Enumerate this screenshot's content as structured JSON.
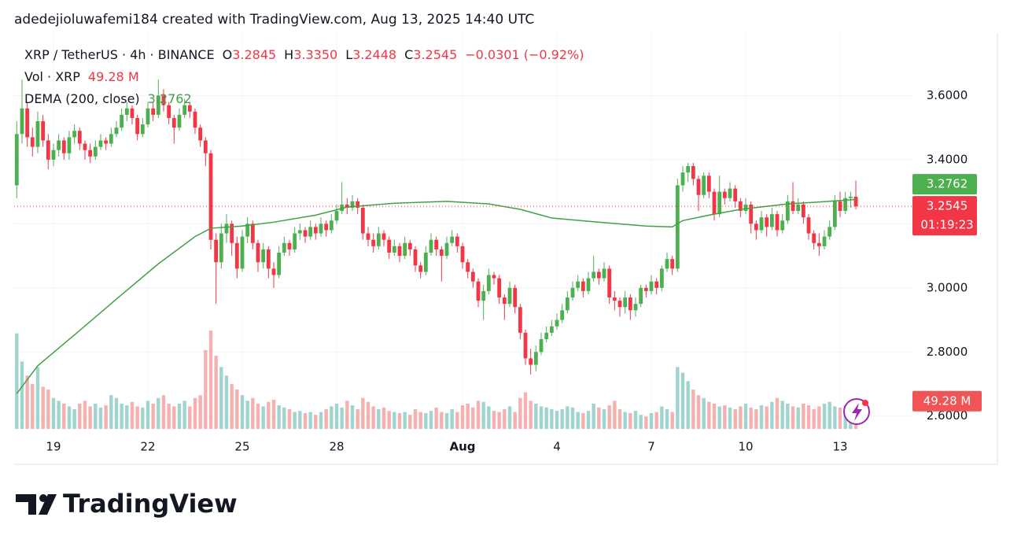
{
  "header": {
    "attribution": "adedejioluwafemi184 created with TradingView.com, Aug 13, 2025 14:40 UTC"
  },
  "chart_data": {
    "type": "candlestick",
    "symbol": "XRP / TetherUS · 4h · BINANCE",
    "ohlc_names": [
      "O",
      "H",
      "L",
      "C"
    ],
    "ohlc_labels": [
      "3.2845",
      "3.3350",
      "3.2448",
      "3.2545"
    ],
    "change": "−0.0301 (−0.92%)",
    "countdown": "01:19:23",
    "colors": {
      "up": "#4caf50",
      "down": "#f23645",
      "vol_up": "#9fd4cf",
      "vol_down": "#f6b0b0"
    },
    "grid": true,
    "ylim": [
      2.56,
      3.8
    ],
    "yticks": [
      {
        "value": 3.6,
        "label": "3.6000"
      },
      {
        "value": 3.4,
        "label": "3.4000"
      },
      {
        "value": 3.2,
        "label": "3.2000"
      },
      {
        "value": 3.0,
        "label": "3.0000"
      },
      {
        "value": 2.8,
        "label": "2.8000"
      },
      {
        "value": 2.6,
        "label": "2.6000"
      }
    ],
    "categories": [
      null,
      null,
      null,
      null,
      null,
      null,
      null,
      "19",
      null,
      null,
      null,
      null,
      null,
      null,
      null,
      null,
      null,
      null,
      null,
      null,
      null,
      null,
      null,
      null,
      null,
      "22",
      null,
      null,
      null,
      null,
      null,
      null,
      null,
      null,
      null,
      null,
      null,
      null,
      null,
      null,
      null,
      null,
      null,
      "25",
      null,
      null,
      null,
      null,
      null,
      null,
      null,
      null,
      null,
      null,
      null,
      null,
      null,
      null,
      null,
      null,
      null,
      "28",
      null,
      null,
      null,
      null,
      null,
      null,
      null,
      null,
      null,
      null,
      null,
      null,
      null,
      null,
      null,
      null,
      null,
      null,
      null,
      null,
      null,
      null,
      null,
      "Aug",
      null,
      null,
      null,
      null,
      null,
      null,
      null,
      null,
      null,
      null,
      null,
      null,
      null,
      null,
      null,
      null,
      null,
      "4",
      null,
      null,
      null,
      null,
      null,
      null,
      null,
      null,
      null,
      null,
      null,
      null,
      null,
      null,
      null,
      null,
      null,
      "7",
      null,
      null,
      null,
      null,
      null,
      null,
      null,
      null,
      null,
      null,
      null,
      null,
      null,
      null,
      null,
      null,
      null,
      "10",
      null,
      null,
      null,
      null,
      null,
      null,
      null,
      null,
      null,
      null,
      null,
      null,
      null,
      null,
      null,
      null,
      null,
      "13",
      null,
      null,
      null
    ],
    "candles": [
      [
        3.32,
        3.52,
        3.28,
        3.48
      ],
      [
        3.48,
        3.65,
        3.45,
        3.56
      ],
      [
        3.56,
        3.58,
        3.44,
        3.47
      ],
      [
        3.47,
        3.5,
        3.41,
        3.44
      ],
      [
        3.44,
        3.55,
        3.42,
        3.52
      ],
      [
        3.52,
        3.54,
        3.44,
        3.46
      ],
      [
        3.46,
        3.48,
        3.37,
        3.4
      ],
      [
        3.4,
        3.45,
        3.38,
        3.43
      ],
      [
        3.43,
        3.48,
        3.41,
        3.46
      ],
      [
        3.46,
        3.47,
        3.4,
        3.42
      ],
      [
        3.42,
        3.49,
        3.4,
        3.47
      ],
      [
        3.47,
        3.51,
        3.45,
        3.49
      ],
      [
        3.49,
        3.5,
        3.43,
        3.45
      ],
      [
        3.45,
        3.46,
        3.4,
        3.43
      ],
      [
        3.43,
        3.45,
        3.39,
        3.41
      ],
      [
        3.41,
        3.46,
        3.4,
        3.44
      ],
      [
        3.44,
        3.48,
        3.43,
        3.46
      ],
      [
        3.46,
        3.47,
        3.43,
        3.45
      ],
      [
        3.45,
        3.5,
        3.44,
        3.48
      ],
      [
        3.48,
        3.52,
        3.47,
        3.5
      ],
      [
        3.5,
        3.56,
        3.49,
        3.54
      ],
      [
        3.54,
        3.58,
        3.52,
        3.56
      ],
      [
        3.56,
        3.57,
        3.51,
        3.53
      ],
      [
        3.53,
        3.54,
        3.46,
        3.48
      ],
      [
        3.48,
        3.53,
        3.47,
        3.51
      ],
      [
        3.51,
        3.58,
        3.5,
        3.56
      ],
      [
        3.56,
        3.58,
        3.52,
        3.54
      ],
      [
        3.54,
        3.65,
        3.53,
        3.6
      ],
      [
        3.6,
        3.62,
        3.55,
        3.57
      ],
      [
        3.57,
        3.58,
        3.51,
        3.53
      ],
      [
        3.53,
        3.54,
        3.45,
        3.5
      ],
      [
        3.5,
        3.56,
        3.49,
        3.54
      ],
      [
        3.54,
        3.59,
        3.53,
        3.57
      ],
      [
        3.57,
        3.58,
        3.53,
        3.55
      ],
      [
        3.55,
        3.56,
        3.48,
        3.5
      ],
      [
        3.5,
        3.51,
        3.44,
        3.46
      ],
      [
        3.46,
        3.47,
        3.38,
        3.42
      ],
      [
        3.42,
        3.43,
        3.12,
        3.15
      ],
      [
        3.15,
        3.17,
        2.95,
        3.08
      ],
      [
        3.08,
        3.2,
        3.06,
        3.17
      ],
      [
        3.17,
        3.23,
        3.14,
        3.2
      ],
      [
        3.2,
        3.21,
        3.1,
        3.14
      ],
      [
        3.14,
        3.16,
        3.03,
        3.06
      ],
      [
        3.06,
        3.18,
        3.05,
        3.16
      ],
      [
        3.16,
        3.22,
        3.14,
        3.2
      ],
      [
        3.2,
        3.21,
        3.12,
        3.14
      ],
      [
        3.14,
        3.15,
        3.05,
        3.08
      ],
      [
        3.08,
        3.14,
        3.06,
        3.12
      ],
      [
        3.12,
        3.13,
        3.03,
        3.06
      ],
      [
        3.06,
        3.08,
        3.0,
        3.04
      ],
      [
        3.04,
        3.13,
        3.03,
        3.11
      ],
      [
        3.11,
        3.16,
        3.1,
        3.14
      ],
      [
        3.14,
        3.15,
        3.1,
        3.12
      ],
      [
        3.12,
        3.19,
        3.11,
        3.17
      ],
      [
        3.17,
        3.2,
        3.15,
        3.18
      ],
      [
        3.18,
        3.19,
        3.14,
        3.16
      ],
      [
        3.16,
        3.21,
        3.15,
        3.19
      ],
      [
        3.19,
        3.2,
        3.15,
        3.17
      ],
      [
        3.17,
        3.22,
        3.16,
        3.2
      ],
      [
        3.2,
        3.21,
        3.16,
        3.18
      ],
      [
        3.18,
        3.23,
        3.17,
        3.21
      ],
      [
        3.21,
        3.26,
        3.2,
        3.24
      ],
      [
        3.24,
        3.33,
        3.23,
        3.26
      ],
      [
        3.26,
        3.28,
        3.23,
        3.25
      ],
      [
        3.25,
        3.29,
        3.24,
        3.27
      ],
      [
        3.27,
        3.28,
        3.23,
        3.25
      ],
      [
        3.25,
        3.26,
        3.15,
        3.17
      ],
      [
        3.17,
        3.19,
        3.13,
        3.15
      ],
      [
        3.15,
        3.17,
        3.11,
        3.13
      ],
      [
        3.13,
        3.19,
        3.12,
        3.17
      ],
      [
        3.17,
        3.18,
        3.13,
        3.15
      ],
      [
        3.15,
        3.16,
        3.09,
        3.11
      ],
      [
        3.11,
        3.15,
        3.1,
        3.13
      ],
      [
        3.13,
        3.14,
        3.08,
        3.1
      ],
      [
        3.1,
        3.16,
        3.09,
        3.14
      ],
      [
        3.14,
        3.15,
        3.1,
        3.12
      ],
      [
        3.12,
        3.13,
        3.05,
        3.07
      ],
      [
        3.07,
        3.08,
        3.03,
        3.05
      ],
      [
        3.05,
        3.13,
        3.04,
        3.11
      ],
      [
        3.11,
        3.17,
        3.1,
        3.15
      ],
      [
        3.15,
        3.16,
        3.1,
        3.12
      ],
      [
        3.12,
        3.13,
        3.02,
        3.1
      ],
      [
        3.1,
        3.16,
        3.09,
        3.14
      ],
      [
        3.14,
        3.18,
        3.13,
        3.16
      ],
      [
        3.16,
        3.17,
        3.11,
        3.13
      ],
      [
        3.13,
        3.14,
        3.06,
        3.08
      ],
      [
        3.08,
        3.09,
        3.03,
        3.05
      ],
      [
        3.05,
        3.06,
        3.0,
        3.02
      ],
      [
        3.02,
        3.03,
        2.94,
        2.96
      ],
      [
        2.96,
        3.01,
        2.9,
        2.99
      ],
      [
        2.99,
        3.06,
        2.98,
        3.04
      ],
      [
        3.04,
        3.05,
        3.01,
        3.03
      ],
      [
        3.03,
        3.04,
        2.95,
        2.97
      ],
      [
        2.97,
        2.98,
        2.9,
        2.95
      ],
      [
        2.95,
        3.02,
        2.94,
        3.0
      ],
      [
        3.0,
        3.01,
        2.92,
        2.94
      ],
      [
        2.94,
        2.95,
        2.84,
        2.86
      ],
      [
        2.86,
        2.87,
        2.76,
        2.78
      ],
      [
        2.78,
        2.81,
        2.73,
        2.76
      ],
      [
        2.76,
        2.82,
        2.74,
        2.8
      ],
      [
        2.8,
        2.86,
        2.79,
        2.84
      ],
      [
        2.84,
        2.88,
        2.83,
        2.86
      ],
      [
        2.86,
        2.9,
        2.85,
        2.88
      ],
      [
        2.88,
        2.92,
        2.87,
        2.9
      ],
      [
        2.9,
        2.95,
        2.89,
        2.93
      ],
      [
        2.93,
        2.99,
        2.92,
        2.97
      ],
      [
        2.97,
        3.02,
        2.96,
        3.0
      ],
      [
        3.0,
        3.04,
        2.99,
        3.02
      ],
      [
        3.02,
        3.03,
        2.97,
        2.99
      ],
      [
        2.99,
        3.05,
        2.98,
        3.03
      ],
      [
        3.03,
        3.1,
        3.02,
        3.05
      ],
      [
        3.05,
        3.06,
        3.01,
        3.03
      ],
      [
        3.03,
        3.08,
        3.02,
        3.06
      ],
      [
        3.06,
        3.07,
        2.95,
        2.97
      ],
      [
        2.97,
        2.99,
        2.93,
        2.96
      ],
      [
        2.96,
        2.97,
        2.91,
        2.94
      ],
      [
        2.94,
        2.99,
        2.92,
        2.97
      ],
      [
        2.97,
        2.98,
        2.9,
        2.93
      ],
      [
        2.93,
        2.97,
        2.91,
        2.95
      ],
      [
        2.95,
        3.01,
        2.94,
        3.0
      ],
      [
        3.0,
        3.01,
        2.97,
        2.99
      ],
      [
        2.99,
        3.04,
        2.98,
        3.02
      ],
      [
        3.02,
        3.03,
        2.98,
        3.0
      ],
      [
        3.0,
        3.07,
        2.99,
        3.06
      ],
      [
        3.06,
        3.11,
        3.05,
        3.09
      ],
      [
        3.09,
        3.1,
        3.04,
        3.06
      ],
      [
        3.06,
        3.34,
        3.05,
        3.32
      ],
      [
        3.32,
        3.38,
        3.3,
        3.36
      ],
      [
        3.36,
        3.39,
        3.33,
        3.38
      ],
      [
        3.38,
        3.39,
        3.32,
        3.34
      ],
      [
        3.34,
        3.35,
        3.24,
        3.29
      ],
      [
        3.29,
        3.36,
        3.28,
        3.35
      ],
      [
        3.35,
        3.36,
        3.28,
        3.3
      ],
      [
        3.3,
        3.31,
        3.21,
        3.23
      ],
      [
        3.23,
        3.35,
        3.22,
        3.3
      ],
      [
        3.3,
        3.31,
        3.26,
        3.28
      ],
      [
        3.28,
        3.33,
        3.27,
        3.31
      ],
      [
        3.31,
        3.32,
        3.25,
        3.27
      ],
      [
        3.27,
        3.28,
        3.22,
        3.24
      ],
      [
        3.24,
        3.28,
        3.23,
        3.26
      ],
      [
        3.26,
        3.27,
        3.17,
        3.2
      ],
      [
        3.2,
        3.21,
        3.15,
        3.18
      ],
      [
        3.18,
        3.24,
        3.17,
        3.22
      ],
      [
        3.22,
        3.23,
        3.16,
        3.19
      ],
      [
        3.19,
        3.25,
        3.18,
        3.23
      ],
      [
        3.23,
        3.24,
        3.16,
        3.18
      ],
      [
        3.18,
        3.23,
        3.17,
        3.21
      ],
      [
        3.21,
        3.29,
        3.2,
        3.27
      ],
      [
        3.27,
        3.33,
        3.23,
        3.24
      ],
      [
        3.24,
        3.28,
        3.23,
        3.26
      ],
      [
        3.26,
        3.27,
        3.2,
        3.22
      ],
      [
        3.22,
        3.23,
        3.15,
        3.17
      ],
      [
        3.17,
        3.18,
        3.12,
        3.14
      ],
      [
        3.14,
        3.17,
        3.1,
        3.13
      ],
      [
        3.13,
        3.18,
        3.12,
        3.16
      ],
      [
        3.16,
        3.21,
        3.15,
        3.19
      ],
      [
        3.19,
        3.29,
        3.18,
        3.27
      ],
      [
        3.27,
        3.3,
        3.22,
        3.24
      ],
      [
        3.24,
        3.3,
        3.23,
        3.28
      ],
      [
        3.28,
        3.3,
        3.25,
        3.2845
      ],
      [
        3.2845,
        3.335,
        3.2448,
        3.2545
      ]
    ],
    "volume": {
      "name": "Vol · XRP",
      "value_label": "49.28 M",
      "values": [
        170,
        120,
        95,
        80,
        110,
        75,
        70,
        55,
        50,
        45,
        40,
        35,
        45,
        50,
        40,
        45,
        38,
        42,
        60,
        55,
        45,
        42,
        48,
        40,
        38,
        50,
        45,
        55,
        60,
        45,
        40,
        45,
        50,
        40,
        55,
        60,
        140,
        175,
        130,
        110,
        95,
        80,
        70,
        60,
        50,
        55,
        45,
        40,
        48,
        52,
        42,
        38,
        35,
        30,
        32,
        28,
        30,
        25,
        30,
        35,
        40,
        45,
        38,
        50,
        42,
        35,
        55,
        48,
        40,
        35,
        38,
        32,
        30,
        28,
        30,
        25,
        35,
        30,
        28,
        32,
        38,
        30,
        28,
        35,
        30,
        42,
        45,
        38,
        50,
        48,
        40,
        32,
        30,
        35,
        40,
        30,
        55,
        65,
        50,
        45,
        40,
        38,
        35,
        32,
        35,
        40,
        38,
        30,
        28,
        32,
        45,
        38,
        35,
        42,
        50,
        35,
        30,
        28,
        32,
        25,
        22,
        28,
        30,
        40,
        35,
        30,
        110,
        100,
        85,
        70,
        60,
        55,
        48,
        45,
        40,
        42,
        38,
        35,
        40,
        45,
        38,
        35,
        42,
        40,
        48,
        55,
        50,
        45,
        40,
        38,
        45,
        42,
        35,
        40,
        45,
        48,
        40,
        38,
        42,
        45,
        49.28
      ]
    },
    "dema": {
      "name": "DEMA (200, close)",
      "value_label": "3.2762",
      "color": "#43a047",
      "x": [
        0,
        4,
        12,
        19,
        27,
        34,
        37,
        43,
        49,
        57,
        63,
        72,
        82,
        90,
        96,
        102,
        111,
        120,
        125,
        127,
        132,
        138,
        147,
        154,
        160
      ],
      "values": [
        2.67,
        2.757,
        2.867,
        2.965,
        3.075,
        3.16,
        3.186,
        3.193,
        3.205,
        3.227,
        3.252,
        3.264,
        3.27,
        3.262,
        3.245,
        3.218,
        3.205,
        3.193,
        3.19,
        3.21,
        3.227,
        3.245,
        3.262,
        3.269,
        3.2762
      ]
    }
  },
  "footer": {
    "brand": "TradingView"
  }
}
